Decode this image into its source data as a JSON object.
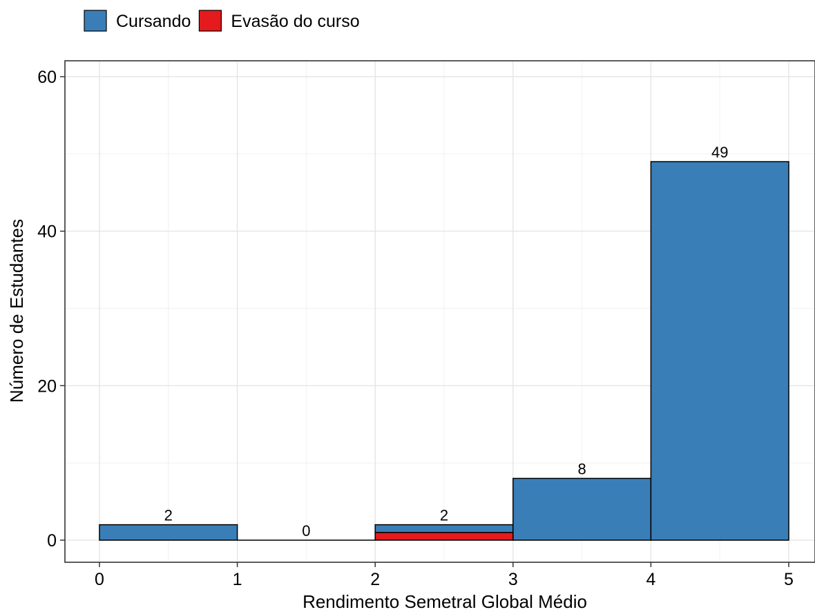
{
  "chart_data": {
    "type": "bar",
    "xlabel": "Rendimento Semetral Global Médio",
    "ylabel": "Número de Estudantes",
    "xlim": [
      0,
      5
    ],
    "ylim": [
      0,
      60
    ],
    "x_ticks": [
      "0",
      "1",
      "2",
      "3",
      "4",
      "5"
    ],
    "y_ticks": [
      "0",
      "20",
      "40",
      "60"
    ],
    "bins": [
      [
        0,
        1
      ],
      [
        1,
        2
      ],
      [
        2,
        3
      ],
      [
        3,
        4
      ],
      [
        4,
        5
      ]
    ],
    "series": [
      {
        "name": "Cursando",
        "color": "#3A7EB8",
        "values": [
          2,
          0,
          1,
          8,
          49
        ]
      },
      {
        "name": "Evasão do curso",
        "color": "#E41A1C",
        "values": [
          0,
          0,
          1,
          0,
          0
        ]
      }
    ],
    "totals": [
      "2",
      "0",
      "2",
      "8",
      "49"
    ],
    "legend_position": "top-left",
    "grid": true
  }
}
